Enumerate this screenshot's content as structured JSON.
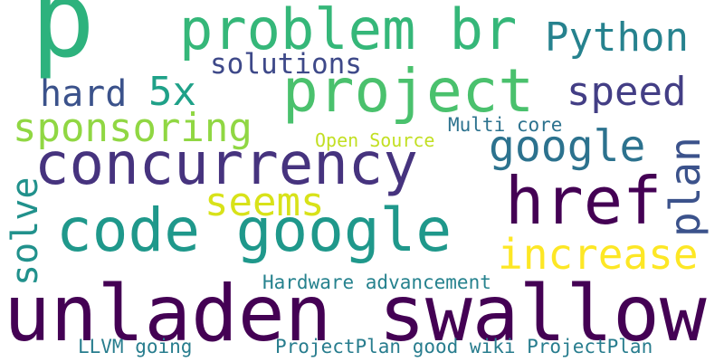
{
  "words": [
    {
      "key": "w_p",
      "text": "p",
      "color": "#2db27d"
    },
    {
      "key": "w_problem_br",
      "text": "problem br",
      "color": "#35b779"
    },
    {
      "key": "w_python",
      "text": "Python",
      "color": "#26828e"
    },
    {
      "key": "w_solutions",
      "text": "solutions",
      "color": "#3e4989"
    },
    {
      "key": "w_hard",
      "text": "hard",
      "color": "#3b528b"
    },
    {
      "key": "w_5x",
      "text": "5x",
      "color": "#1fa188"
    },
    {
      "key": "w_project",
      "text": "project",
      "color": "#4ac16d"
    },
    {
      "key": "w_speed",
      "text": "speed",
      "color": "#433e85"
    },
    {
      "key": "w_sponsoring",
      "text": "sponsoring",
      "color": "#90d743"
    },
    {
      "key": "w_multi_core",
      "text": "Multi core",
      "color": "#2c728e"
    },
    {
      "key": "w_open_source",
      "text": "Open Source",
      "color": "#c2df23"
    },
    {
      "key": "w_google_small",
      "text": "google",
      "color": "#2c728e"
    },
    {
      "key": "w_concurrency",
      "text": "concurrency",
      "color": "#46337e"
    },
    {
      "key": "w_plan",
      "text": "plan",
      "color": "#3b528b"
    },
    {
      "key": "w_href",
      "text": "href",
      "color": "#440154"
    },
    {
      "key": "w_seems",
      "text": "seems",
      "color": "#d8e219"
    },
    {
      "key": "w_solve",
      "text": "solve",
      "color": "#21918c"
    },
    {
      "key": "w_code_google",
      "text": "code google",
      "color": "#1f988b"
    },
    {
      "key": "w_increase",
      "text": "increase",
      "color": "#fde725"
    },
    {
      "key": "w_hardware",
      "text": "Hardware advancement",
      "color": "#26828e"
    },
    {
      "key": "w_unladen_swallow",
      "text": "unladen swallow",
      "color": "#440154"
    },
    {
      "key": "w_llvm_going",
      "text": "LLVM going",
      "color": "#287d8e"
    },
    {
      "key": "w_projectplan_wiki",
      "text": "ProjectPlan good wiki ProjectPlan",
      "color": "#287d8e"
    }
  ]
}
